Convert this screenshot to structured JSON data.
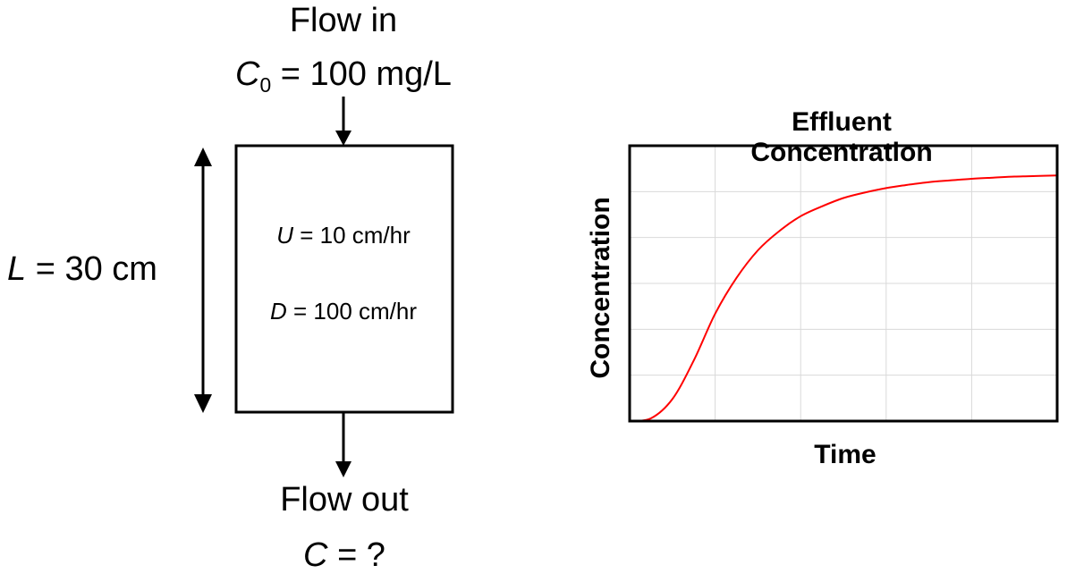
{
  "diagram": {
    "flow_in_label": "Flow in",
    "inlet_concentration": {
      "symbol": "C",
      "subscript": "0",
      "value_text": "= 100 mg/L"
    },
    "length": {
      "symbol": "L",
      "value_text": "= 30 cm"
    },
    "velocity": {
      "symbol": "U",
      "value_text": "= 10 cm/hr"
    },
    "dispersion": {
      "symbol": "D",
      "value_text": "= 100 cm/hr"
    },
    "flow_out_label": "Flow out",
    "outlet_concentration": {
      "symbol": "C",
      "value_text": "= ?"
    }
  },
  "chart_data": {
    "type": "line",
    "title": "Effluent Concentration",
    "xlabel": "Time",
    "ylabel": "Concentration",
    "xlim": [
      0,
      10
    ],
    "ylim": [
      0,
      5
    ],
    "grid": true,
    "show_tick_labels": false,
    "series": [
      {
        "color": "#ff0000",
        "x": [
          0,
          0.5,
          1,
          1.5,
          2,
          2.5,
          3,
          3.5,
          4,
          4.5,
          5,
          5.5,
          6,
          6.5,
          7,
          7.5,
          8,
          8.5,
          9,
          9.5,
          10
        ],
        "y": [
          0,
          0.05,
          0.4,
          1.1,
          1.95,
          2.6,
          3.1,
          3.45,
          3.72,
          3.9,
          4.05,
          4.15,
          4.23,
          4.29,
          4.34,
          4.37,
          4.4,
          4.42,
          4.44,
          4.45,
          4.46
        ]
      }
    ]
  }
}
